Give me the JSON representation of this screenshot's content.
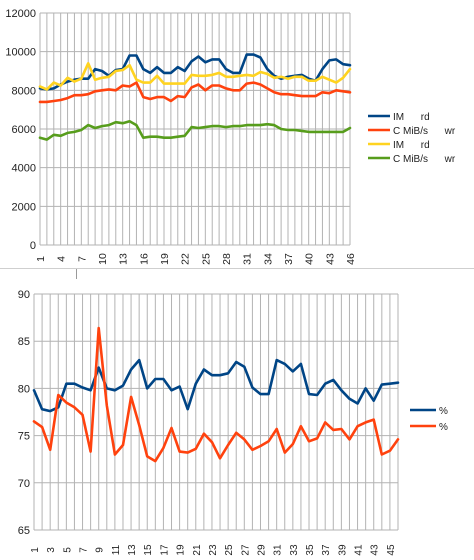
{
  "chart_data": [
    {
      "type": "line",
      "title": "",
      "xlabel": "",
      "ylabel": "",
      "ylim": [
        0,
        12000
      ],
      "yticks": [
        0,
        2000,
        4000,
        6000,
        8000,
        10000,
        12000
      ],
      "x": [
        1,
        2,
        3,
        4,
        5,
        6,
        7,
        8,
        9,
        10,
        11,
        12,
        13,
        14,
        15,
        16,
        17,
        18,
        19,
        20,
        21,
        22,
        23,
        24,
        25,
        26,
        27,
        28,
        29,
        30,
        31,
        32,
        33,
        34,
        35,
        36,
        37,
        38,
        39,
        40,
        41,
        42,
        43,
        44,
        45,
        46
      ],
      "xtick_labels": [
        "1",
        "4",
        "7",
        "10",
        "13",
        "16",
        "19",
        "22",
        "25",
        "28",
        "31",
        "34",
        "37",
        "40",
        "43",
        "46"
      ],
      "grid": true,
      "legend_position": "right",
      "series": [
        {
          "name": "IM      rd",
          "color": "#004586",
          "values": [
            8100,
            8050,
            8100,
            8300,
            8450,
            8550,
            8600,
            8600,
            9100,
            9000,
            8750,
            9050,
            9100,
            9800,
            9800,
            9100,
            8900,
            9200,
            8900,
            8900,
            9200,
            9000,
            9500,
            9750,
            9450,
            9600,
            9600,
            9100,
            8900,
            8900,
            9850,
            9850,
            9700,
            9100,
            8750,
            8600,
            8700,
            8750,
            8800,
            8600,
            8500,
            9100,
            9550,
            9600,
            9350,
            9300
          ]
        },
        {
          "name": "C MiB/s      wr",
          "color": "#ff420e",
          "values": [
            7400,
            7400,
            7450,
            7500,
            7600,
            7750,
            7750,
            7800,
            7950,
            8000,
            8050,
            8000,
            8250,
            8200,
            8400,
            7650,
            7550,
            7650,
            7650,
            7450,
            7700,
            7650,
            8150,
            8300,
            8000,
            8250,
            8250,
            8100,
            8000,
            8000,
            8350,
            8400,
            8300,
            8100,
            7900,
            7800,
            7800,
            7750,
            7700,
            7700,
            7700,
            7900,
            7850,
            8000,
            7950,
            7900
          ]
        },
        {
          "name": "IM      rd",
          "color": "#ffd320",
          "values": [
            8200,
            8050,
            8400,
            8250,
            8650,
            8450,
            8600,
            9400,
            8550,
            8650,
            8700,
            9000,
            9050,
            9300,
            8550,
            8400,
            8400,
            8750,
            8350,
            8350,
            8350,
            8350,
            8800,
            8750,
            8750,
            8800,
            8900,
            8700,
            8700,
            8750,
            8800,
            8750,
            8950,
            8850,
            8650,
            8700,
            8600,
            8700,
            8700,
            8500,
            8500,
            8700,
            8550,
            8400,
            8650,
            9100
          ]
        },
        {
          "name": "C MiB/s      wr",
          "color": "#579d1c",
          "values": [
            5550,
            5450,
            5700,
            5650,
            5800,
            5850,
            5950,
            6200,
            6050,
            6150,
            6200,
            6350,
            6300,
            6400,
            6200,
            5550,
            5600,
            5600,
            5550,
            5550,
            5600,
            5650,
            6100,
            6050,
            6100,
            6150,
            6150,
            6100,
            6150,
            6150,
            6200,
            6200,
            6200,
            6250,
            6200,
            6000,
            5950,
            5950,
            5900,
            5850,
            5850,
            5850,
            5850,
            5850,
            5850,
            6050
          ]
        }
      ]
    },
    {
      "type": "line",
      "title": "",
      "xlabel": "",
      "ylabel": "",
      "ylim": [
        65,
        90
      ],
      "yticks": [
        65,
        70,
        75,
        80,
        85,
        90
      ],
      "x": [
        1,
        2,
        3,
        4,
        5,
        6,
        7,
        8,
        9,
        10,
        11,
        12,
        13,
        14,
        15,
        16,
        17,
        18,
        19,
        20,
        21,
        22,
        23,
        24,
        25,
        26,
        27,
        28,
        29,
        30,
        31,
        32,
        33,
        34,
        35,
        36,
        37,
        38,
        39,
        40,
        41,
        42,
        43,
        44,
        45,
        46
      ],
      "xtick_labels": [
        "1",
        "3",
        "5",
        "7",
        "9",
        "11",
        "13",
        "15",
        "17",
        "19",
        "21",
        "23",
        "25",
        "27",
        "29",
        "31",
        "33",
        "35",
        "37",
        "39",
        "41",
        "43",
        "45"
      ],
      "grid": true,
      "legend_position": "right",
      "series": [
        {
          "name": "%",
          "color": "#004586",
          "values": [
            79.8,
            77.8,
            77.6,
            78.0,
            80.5,
            80.5,
            80.1,
            79.8,
            82.2,
            80.0,
            79.8,
            80.3,
            82.0,
            83.0,
            80.0,
            81.0,
            81.0,
            79.8,
            80.2,
            77.8,
            80.5,
            82.0,
            81.4,
            81.4,
            81.6,
            82.8,
            82.3,
            80.1,
            79.4,
            79.4,
            83.0,
            82.6,
            81.8,
            82.6,
            79.4,
            79.3,
            80.5,
            80.9,
            79.8,
            78.9,
            78.4,
            80.0,
            78.7,
            80.4,
            80.5,
            80.6
          ]
        },
        {
          "name": "%",
          "color": "#ff420e",
          "values": [
            76.5,
            75.9,
            73.5,
            79.3,
            78.5,
            78.0,
            77.2,
            73.3,
            86.4,
            78.2,
            73.0,
            74.0,
            79.1,
            76.1,
            72.8,
            72.3,
            73.7,
            75.8,
            73.3,
            73.2,
            73.6,
            75.2,
            74.3,
            72.6,
            74.0,
            75.3,
            74.6,
            73.5,
            73.9,
            74.4,
            75.7,
            73.2,
            74.1,
            76.0,
            74.4,
            74.7,
            76.4,
            75.6,
            75.7,
            74.6,
            76.0,
            76.4,
            76.7,
            73.0,
            73.4,
            74.6
          ]
        }
      ]
    }
  ]
}
